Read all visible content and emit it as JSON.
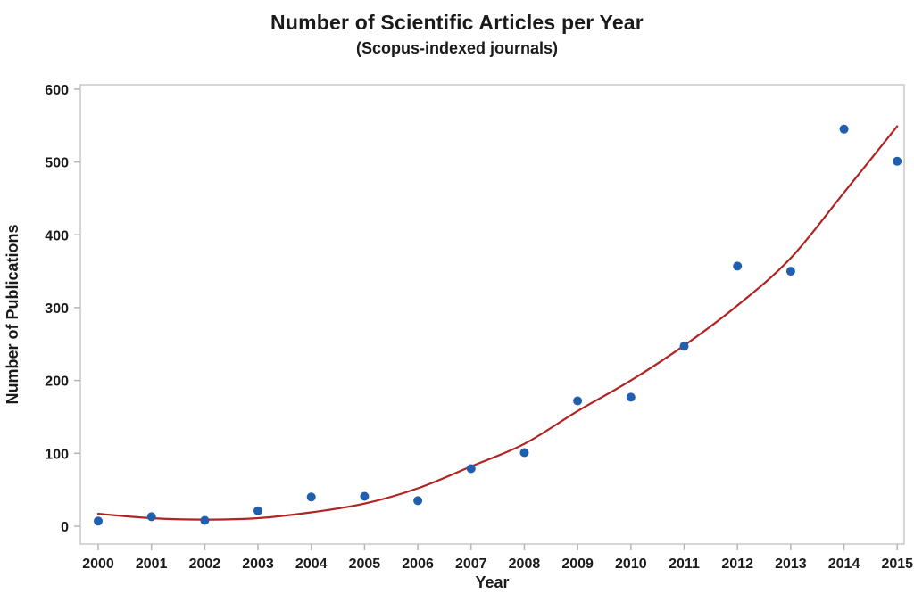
{
  "header": {
    "title": "Number of Scientific Articles per Year",
    "subtitle": "(Scopus-indexed journals)"
  },
  "colors": {
    "point": "#1F5FAD",
    "trend_line": "#B02423",
    "frame": "#C8C8C8",
    "tick": "#B5B5B5",
    "text": "#1A1A1A",
    "background": "#FFFFFF"
  },
  "chart_data": {
    "type": "scatter",
    "title": "Number of Scientific Articles per Year",
    "subtitle": "(Scopus-indexed journals)",
    "xlabel": "Year",
    "ylabel": "Number of Publications",
    "x": [
      2000,
      2001,
      2002,
      2003,
      2004,
      2005,
      2006,
      2007,
      2008,
      2009,
      2010,
      2011,
      2012,
      2013,
      2014,
      2015
    ],
    "series": [
      {
        "name": "Publications",
        "type": "scatter",
        "color": "#1F5FAD",
        "marker_radius": 5,
        "values": [
          7,
          13,
          8,
          21,
          40,
          41,
          35,
          79,
          101,
          172,
          177,
          247,
          357,
          350,
          545,
          501
        ]
      },
      {
        "name": "Fitted trend",
        "type": "line",
        "color": "#B02423",
        "stroke_width": 2.2,
        "values": [
          17,
          11,
          9,
          11,
          19,
          31,
          52,
          82,
          113,
          158,
          200,
          248,
          303,
          368,
          458,
          549
        ]
      }
    ],
    "xlim": [
      1999.665,
      2015.13
    ],
    "ylim": [
      -24.5,
      606
    ],
    "x_ticks": [
      2000,
      2001,
      2002,
      2003,
      2004,
      2005,
      2006,
      2007,
      2008,
      2009,
      2010,
      2011,
      2012,
      2013,
      2014,
      2015
    ],
    "y_ticks": [
      0,
      100,
      200,
      300,
      400,
      500,
      600
    ],
    "grid": false,
    "legend_position": "none"
  }
}
